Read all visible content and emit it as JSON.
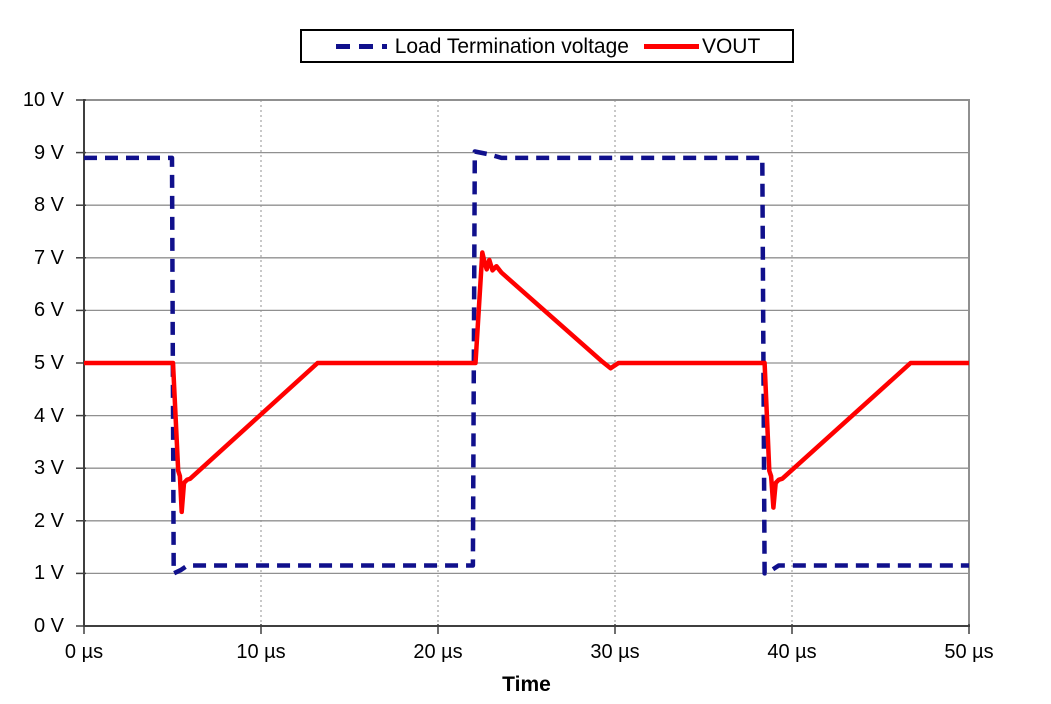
{
  "chart_data": {
    "type": "line",
    "title": "",
    "xlabel": "Time",
    "ylabel": "",
    "x_unit": "µs",
    "y_unit": "V",
    "xlim": [
      0,
      50
    ],
    "ylim": [
      0,
      10
    ],
    "x_tick_values": [
      0,
      10,
      20,
      30,
      40,
      50
    ],
    "x_tick_labels": [
      "0 µs",
      "10 µs",
      "20 µs",
      "30 µs",
      "40 µs",
      "50 µs"
    ],
    "y_tick_values": [
      0,
      1,
      2,
      3,
      4,
      5,
      6,
      7,
      8,
      9,
      10
    ],
    "y_tick_labels": [
      "0 V",
      "1 V",
      "2 V",
      "3 V",
      "4 V",
      "5 V",
      "6 V",
      "7 V",
      "8 V",
      "9 V",
      "10 V"
    ],
    "grid": {
      "horizontal": "solid",
      "vertical": "dotted"
    },
    "legend_position": "top-center",
    "colors": {
      "grid": "#909090",
      "axis": "#3F3F3F",
      "background": "#FFFFFF",
      "text": "#000000",
      "legend_border": "#000000"
    },
    "series": [
      {
        "name": "Load Termination voltage",
        "color": "#10108C",
        "style": "dashed",
        "points": [
          [
            0,
            8.9
          ],
          [
            4.97,
            8.9
          ],
          [
            5.07,
            1.0
          ],
          [
            5.45,
            1.06
          ],
          [
            5.85,
            1.15
          ],
          [
            21.97,
            1.15
          ],
          [
            22.08,
            9.02
          ],
          [
            22.85,
            8.97
          ],
          [
            23.6,
            8.9
          ],
          [
            38.32,
            8.9
          ],
          [
            38.45,
            1.0
          ],
          [
            38.85,
            1.06
          ],
          [
            39.25,
            1.15
          ],
          [
            50,
            1.15
          ]
        ]
      },
      {
        "name": "VOUT",
        "color": "#FF0000",
        "style": "solid",
        "points": [
          [
            0,
            5.0
          ],
          [
            5.03,
            5.0
          ],
          [
            5.32,
            2.95
          ],
          [
            5.42,
            2.85
          ],
          [
            5.52,
            2.17
          ],
          [
            5.65,
            2.72
          ],
          [
            5.82,
            2.78
          ],
          [
            6.0,
            2.8
          ],
          [
            13.2,
            5.0
          ],
          [
            22.12,
            5.0
          ],
          [
            22.5,
            7.1
          ],
          [
            22.62,
            6.93
          ],
          [
            22.75,
            6.78
          ],
          [
            22.9,
            6.96
          ],
          [
            23.08,
            6.76
          ],
          [
            23.3,
            6.84
          ],
          [
            23.58,
            6.72
          ],
          [
            29.3,
            5.02
          ],
          [
            29.75,
            4.9
          ],
          [
            30.2,
            5.0
          ],
          [
            38.45,
            5.0
          ],
          [
            38.72,
            2.95
          ],
          [
            38.82,
            2.85
          ],
          [
            38.95,
            2.25
          ],
          [
            39.08,
            2.72
          ],
          [
            39.25,
            2.78
          ],
          [
            39.45,
            2.8
          ],
          [
            46.7,
            5.0
          ],
          [
            50,
            5.0
          ]
        ]
      }
    ]
  }
}
